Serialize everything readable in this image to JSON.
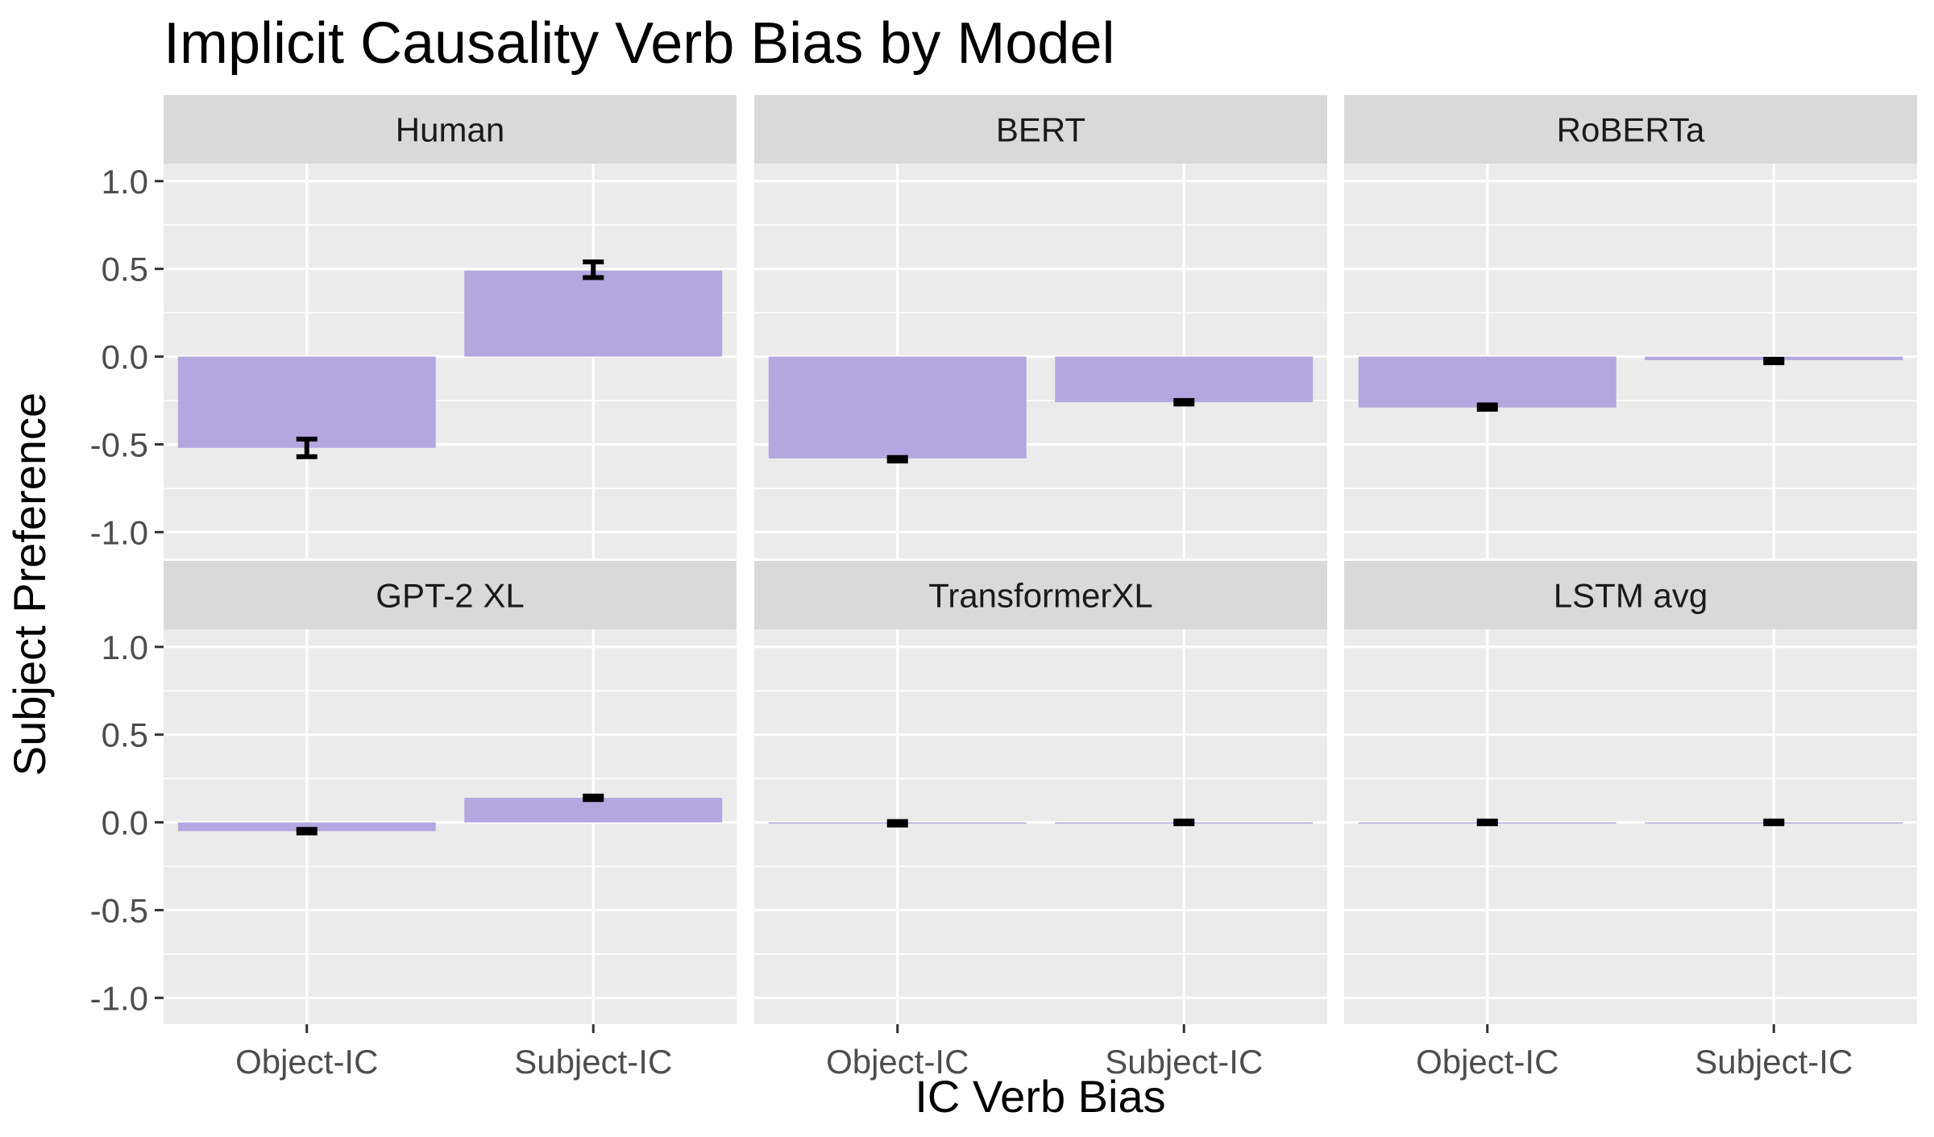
{
  "chart_data": {
    "type": "bar",
    "title": "Implicit Causality Verb Bias by Model",
    "xlabel": "IC Verb Bias",
    "ylabel": "Subject Preference",
    "categories": [
      "Object-IC",
      "Subject-IC"
    ],
    "ylim": [
      -1.15,
      1.1
    ],
    "yticks": [
      1.0,
      0.5,
      0.0,
      -0.5,
      -1.0
    ],
    "ytick_labels": [
      "1.0",
      "0.5",
      "0.0",
      "-0.5",
      "-1.0"
    ],
    "grid": true,
    "panel_layout": "2 rows x 3 columns",
    "bar_color": "#b4a7e0",
    "error_bar_color": "#000000",
    "panel_bg": "#ebebeb",
    "strip_bg": "#d9d9d9",
    "panels": [
      {
        "name": "Human",
        "values": [
          -0.52,
          0.49
        ],
        "errors": [
          [
            -0.57,
            -0.47
          ],
          [
            0.45,
            0.54
          ]
        ]
      },
      {
        "name": "BERT",
        "values": [
          -0.58,
          -0.26
        ],
        "errors": [
          [
            -0.595,
            -0.575
          ],
          [
            -0.27,
            -0.25
          ]
        ]
      },
      {
        "name": "RoBERTa",
        "values": [
          -0.29,
          -0.02
        ],
        "errors": [
          [
            -0.3,
            -0.275
          ],
          [
            -0.035,
            -0.015
          ]
        ]
      },
      {
        "name": "GPT-2 XL",
        "values": [
          -0.05,
          0.14
        ],
        "errors": [
          [
            -0.06,
            -0.04
          ],
          [
            0.13,
            0.15
          ]
        ]
      },
      {
        "name": "TransformerXL",
        "values": [
          -0.005,
          0.0
        ],
        "errors": [
          [
            -0.015,
            0.005
          ],
          [
            -0.008,
            0.008
          ]
        ]
      },
      {
        "name": "LSTM avg",
        "values": [
          0.0,
          0.0
        ],
        "errors": [
          [
            -0.008,
            0.008
          ],
          [
            -0.008,
            0.008
          ]
        ]
      }
    ]
  }
}
